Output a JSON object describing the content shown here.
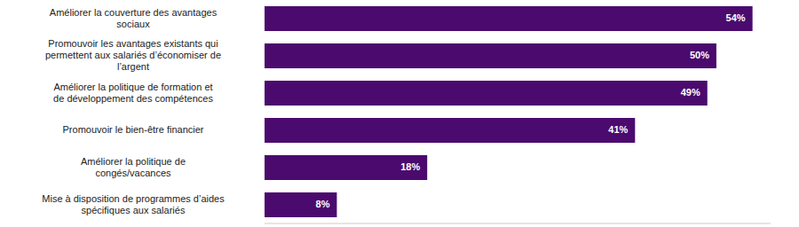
{
  "chart_data": {
    "type": "bar",
    "orientation": "horizontal",
    "categories": [
      "Améliorer la couverture des avantages sociaux",
      "Promouvoir les avantages existants qui permettent aux salariés d’économiser de l’argent",
      "Améliorer la politique de formation et de développement des compétences",
      "Promouvoir le bien-être financier",
      "Améliorer la politique de congés/vacances",
      "Mise à disposition de programmes d’aides spécifiques aux salariés"
    ],
    "values": [
      54,
      50,
      49,
      41,
      18,
      8
    ],
    "value_labels": [
      "54%",
      "50%",
      "49%",
      "41%",
      "18%",
      "8%"
    ],
    "color": "#4b0a6e",
    "xlim": [
      0,
      56
    ],
    "data_labels": true,
    "tick_labels": "y",
    "grid": false
  }
}
